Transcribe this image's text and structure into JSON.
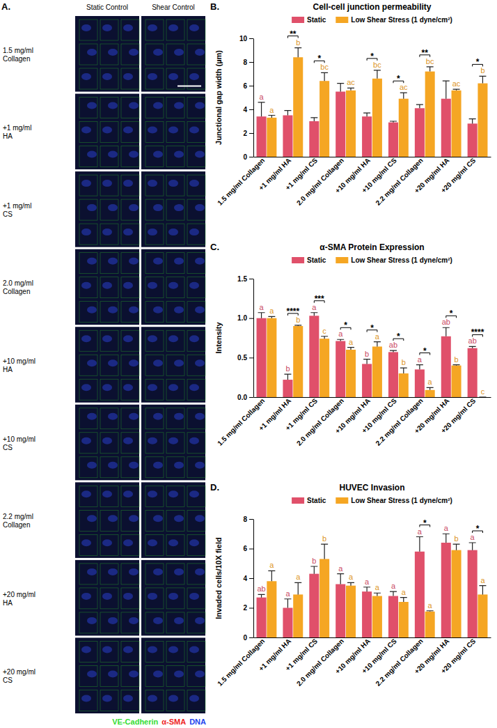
{
  "panel_a": {
    "label": "A.",
    "columns": [
      "Static Control",
      "Shear Control"
    ],
    "rows": [
      [
        "1.5 mg/ml",
        "Collagen"
      ],
      [
        "+1 mg/ml",
        "HA"
      ],
      [
        "+1 mg/ml",
        "CS"
      ],
      [
        "2.0 mg/ml",
        "Collagen"
      ],
      [
        "+10 mg/ml",
        "HA"
      ],
      [
        "+10 mg/ml",
        "CS"
      ],
      [
        "2.2 mg/ml",
        "Collagen"
      ],
      [
        "+20 mg/ml",
        "HA"
      ],
      [
        "+20 mg/ml",
        "CS"
      ]
    ],
    "legend": [
      {
        "text": "VE-Cadherin",
        "color": "#33dd33"
      },
      {
        "text": "α-SMA",
        "color": "#ee2222"
      },
      {
        "text": "DNA",
        "color": "#2244ee"
      }
    ]
  },
  "chart_data": [
    {
      "type": "bar",
      "label": "B.",
      "title": "Cell-cell junction permeability",
      "y_label": "Junctional gap width (µm)",
      "categories": [
        "1.5 mg/ml Collagen",
        "+1 mg/ml HA",
        "+1 mg/ml CS",
        "2.0 mg/ml Collagen",
        "+10 mg/ml HA",
        "+10 mg/ml CS",
        "2.2 mg/ml Collagen",
        "+20 mg/ml HA",
        "+20 mg/ml CS"
      ],
      "series": [
        {
          "name": "Static",
          "color": "#e0506a",
          "values": [
            3.4,
            3.5,
            3.0,
            5.5,
            3.4,
            2.9,
            4.1,
            4.9,
            2.8
          ],
          "errors": [
            1.2,
            0.4,
            0.3,
            0.7,
            0.3,
            0.1,
            0.3,
            1.5,
            0.4
          ],
          "letters": [
            "a",
            null,
            null,
            null,
            null,
            null,
            null,
            null,
            null
          ]
        },
        {
          "name": "Low Shear Stress (1 dyne/cm²)",
          "color": "#f5a623",
          "values": [
            3.3,
            8.4,
            6.4,
            5.6,
            6.6,
            4.9,
            7.2,
            5.6,
            6.2
          ],
          "errors": [
            0.2,
            0.8,
            0.7,
            0.2,
            0.7,
            0.5,
            0.4,
            0.1,
            0.6
          ],
          "letters": [
            "a",
            "b",
            "bc",
            "ac",
            "bc",
            "ac",
            "bc",
            "ac",
            "b"
          ]
        }
      ],
      "significance": [
        {
          "category": 1,
          "label": "**"
        },
        {
          "category": 2,
          "label": "*"
        },
        {
          "category": 4,
          "label": "*"
        },
        {
          "category": 5,
          "label": "*"
        },
        {
          "category": 6,
          "label": "**"
        },
        {
          "category": 8,
          "label": "*"
        }
      ],
      "ylim": [
        0,
        10
      ],
      "yticks": [
        0,
        2,
        4,
        6,
        8,
        10
      ],
      "legend": "top"
    },
    {
      "type": "bar",
      "label": "C.",
      "title": "α-SMA Protein Expression",
      "y_label": "Intensity",
      "categories": [
        "1.5 mg/ml Collagen",
        "+1 mg/ml HA",
        "+1 mg/ml CS",
        "2.0 mg/ml Collagen",
        "+10 mg/ml HA",
        "+10 mg/ml CS",
        "2.2 mg/ml Collagen",
        "+20 mg/ml HA",
        "+20 mg/ml CS"
      ],
      "series": [
        {
          "name": "Static",
          "color": "#e0506a",
          "values": [
            1.0,
            0.22,
            1.03,
            0.71,
            0.42,
            0.57,
            0.35,
            0.77,
            0.62
          ],
          "errors": [
            0.07,
            0.07,
            0.04,
            0.02,
            0.06,
            0.02,
            0.06,
            0.11,
            0.02
          ],
          "letters": [
            "a",
            "b",
            "a",
            "a",
            "b",
            "ab",
            "a",
            "ab",
            "ab"
          ]
        },
        {
          "name": "Low Shear Stress (1 dyne/cm²)",
          "color": "#f5a623",
          "values": [
            1.0,
            0.9,
            0.74,
            0.6,
            0.64,
            0.3,
            0.09,
            0.4,
            0.0
          ],
          "errors": [
            0.02,
            0.01,
            0.03,
            0.03,
            0.06,
            0.07,
            0.03,
            0.01,
            0.0
          ],
          "letters": [
            "a",
            "b",
            "c",
            "a",
            "a",
            "b",
            "a",
            "b",
            "c"
          ]
        }
      ],
      "significance": [
        {
          "category": 1,
          "label": "****"
        },
        {
          "category": 2,
          "label": "***"
        },
        {
          "category": 3,
          "label": "*"
        },
        {
          "category": 4,
          "label": "*"
        },
        {
          "category": 5,
          "label": "*"
        },
        {
          "category": 6,
          "label": "*"
        },
        {
          "category": 7,
          "label": "*"
        },
        {
          "category": 8,
          "label": "****"
        }
      ],
      "ylim": [
        0,
        1.5
      ],
      "yticks": [
        {
          "value": 0,
          "label": "0.0"
        },
        0.5,
        {
          "value": 1,
          "label": "1.0"
        },
        1.5
      ],
      "legend": "top"
    },
    {
      "type": "bar",
      "label": "D.",
      "title": "HUVEC Invasion",
      "y_label": "Invaded cells/10X field",
      "categories": [
        "1.5 mg/ml Collagen",
        "+1 mg/ml HA",
        "+1 mg/ml CS",
        "2.0 mg/ml Collagen",
        "+10 mg/ml HA",
        "+10 mg/ml CS",
        "2.2 mg/ml Collagen",
        "+20 mg/ml HA",
        "+20 mg/ml CS"
      ],
      "series": [
        {
          "name": "Static",
          "color": "#e0506a",
          "values": [
            2.7,
            2.0,
            4.3,
            3.6,
            3.1,
            2.8,
            5.8,
            6.4,
            5.9
          ],
          "errors": [
            0.2,
            0.6,
            0.5,
            0.7,
            0.3,
            0.3,
            1.0,
            0.6,
            0.5
          ],
          "letters": [
            "ab",
            "a",
            "b",
            "a",
            "a",
            "a",
            "a",
            "a",
            "a"
          ]
        },
        {
          "name": "Low Shear Stress (1 dyne/cm²)",
          "color": "#f5a623",
          "values": [
            3.8,
            2.9,
            5.3,
            3.5,
            2.8,
            2.4,
            1.75,
            5.9,
            2.9
          ],
          "errors": [
            0.7,
            0.8,
            1.0,
            0.2,
            0.2,
            0.3,
            0.05,
            0.4,
            0.6
          ],
          "letters": [
            "a",
            "a",
            "b",
            "a",
            "a",
            "a",
            "a",
            "b",
            "a"
          ]
        }
      ],
      "significance": [
        {
          "category": 6,
          "label": "*"
        },
        {
          "category": 8,
          "label": "*"
        }
      ],
      "ylim": [
        0,
        8
      ],
      "yticks": [
        0,
        2,
        4,
        6,
        8
      ],
      "legend": "top"
    }
  ]
}
